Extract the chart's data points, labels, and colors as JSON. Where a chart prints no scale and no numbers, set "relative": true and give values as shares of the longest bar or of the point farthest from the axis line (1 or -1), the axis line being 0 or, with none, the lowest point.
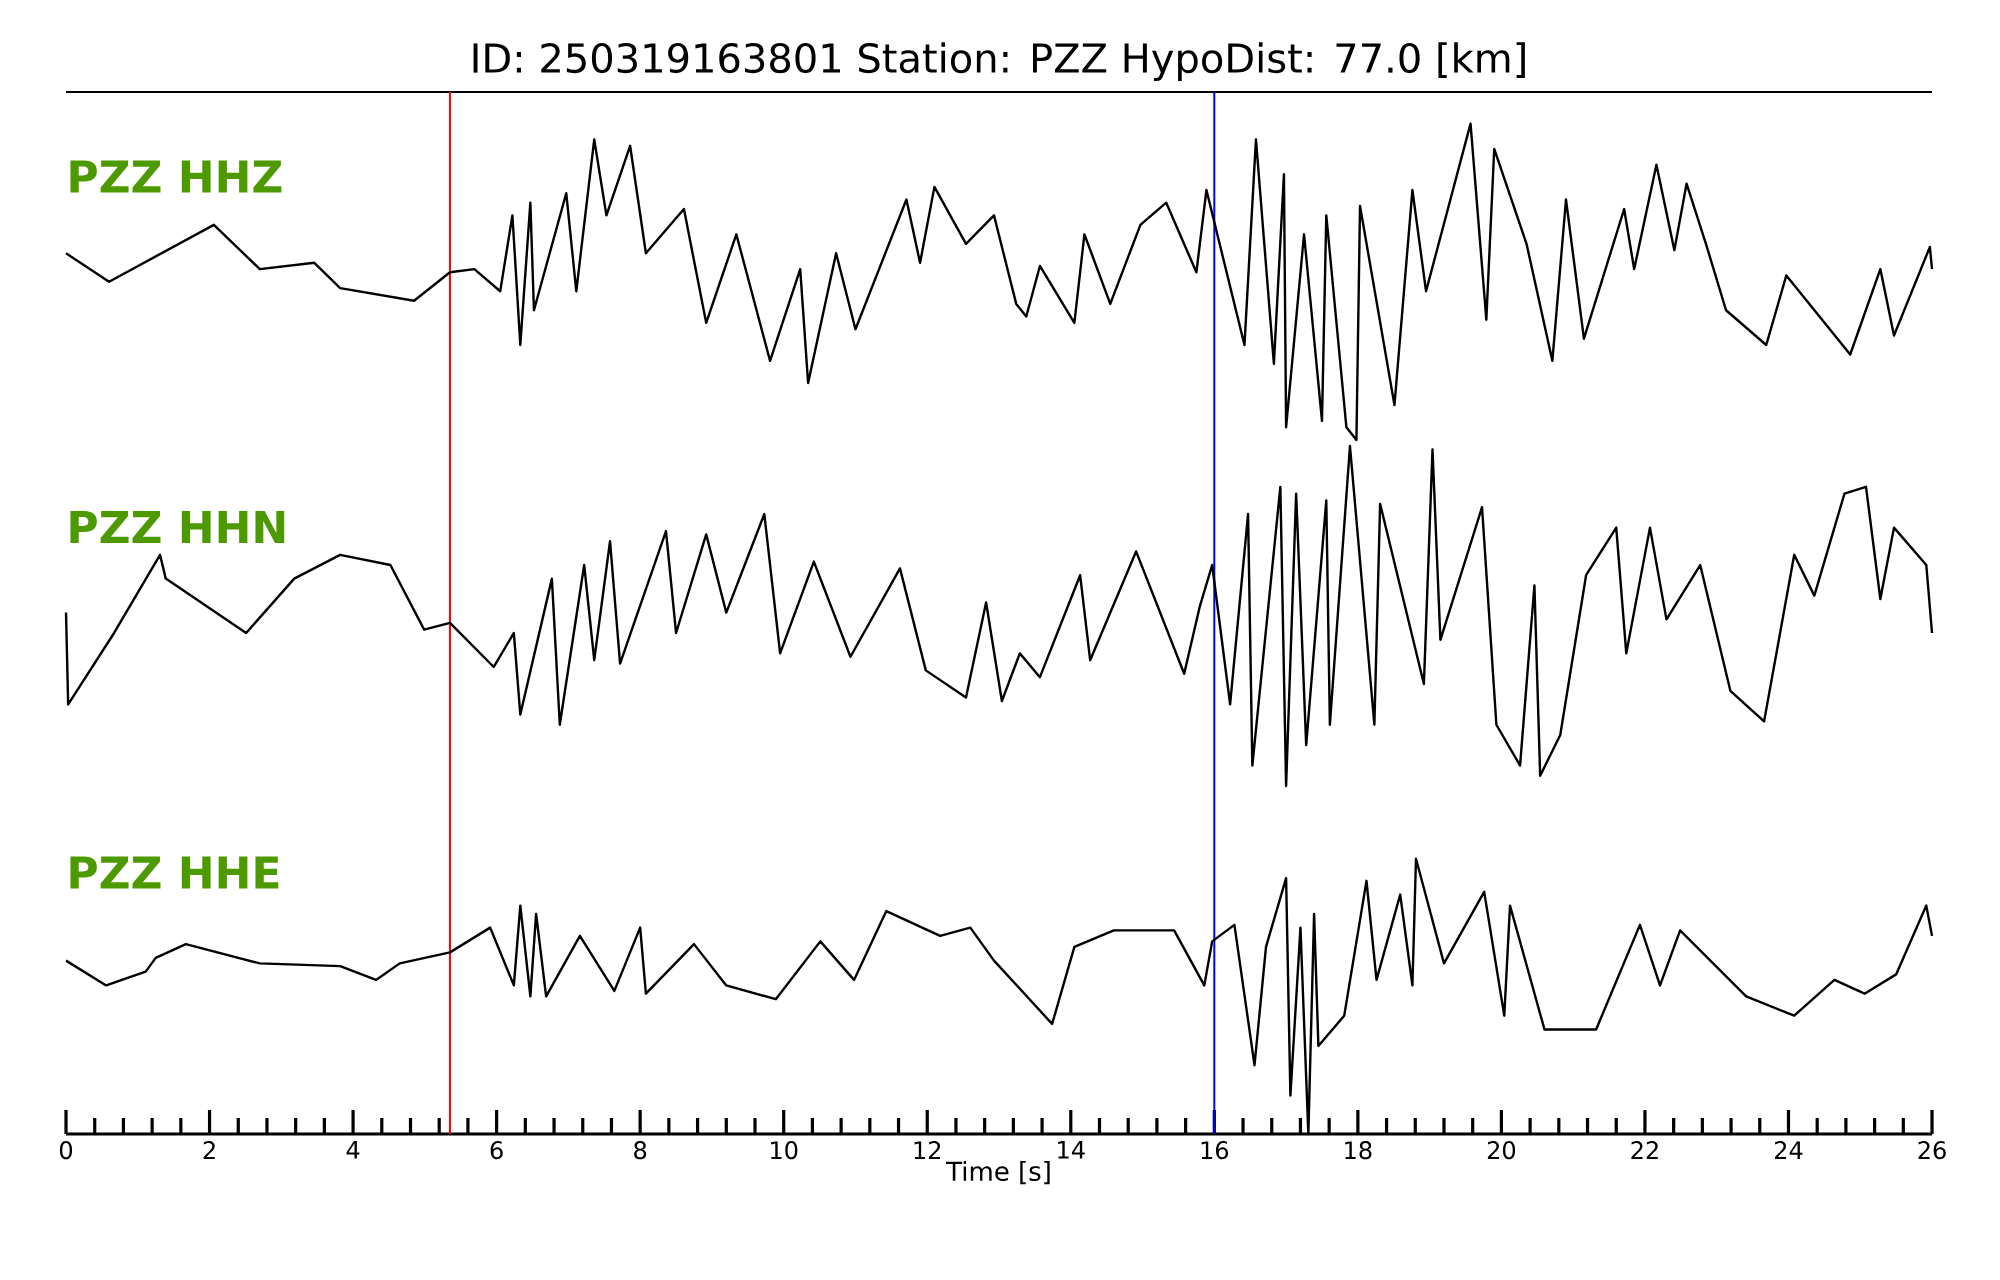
{
  "chart_data": [
    {
      "type": "line",
      "title": "ID: 250319163801   Station: PZZ   HypoDist:     77.0 [km]",
      "relative": true,
      "xlim": [
        0,
        26
      ],
      "tick_labels": false,
      "x": [
        0,
        0.6,
        2.06,
        2.7,
        3.46,
        3.82,
        4.85,
        5.35,
        5.69,
        6.05,
        6.22,
        6.33,
        6.47,
        6.52,
        6.97,
        7.11,
        7.36,
        7.53,
        7.86,
        8.08,
        8.61,
        8.92,
        9.34,
        9.81,
        10.23,
        10.34,
        10.73,
        11.0,
        11.71,
        11.9,
        12.1,
        12.54,
        12.93,
        13.24,
        13.38,
        13.57,
        14.05,
        14.19,
        14.55,
        14.97,
        15.33,
        15.75,
        15.89,
        16.42,
        16.58,
        16.83,
        16.97,
        17.0,
        17.25,
        17.5,
        17.56,
        17.84,
        17.98,
        18.03,
        18.51,
        18.76,
        18.95,
        19.57,
        19.79,
        19.9,
        20.35,
        20.71,
        20.9,
        21.15,
        21.71,
        21.85,
        22.16,
        22.41,
        22.58,
        22.85,
        23.13,
        23.69,
        23.97,
        24.86,
        25.28,
        25.47,
        25.97,
        26.0
      ],
      "series": [
        {
          "name": "PZZ HHZ",
          "color": "#000000",
          "values": [
            0.59,
            0.5,
            0.68,
            0.54,
            0.56,
            0.48,
            0.44,
            0.53,
            0.54,
            0.47,
            0.71,
            0.3,
            0.75,
            0.41,
            0.78,
            0.47,
            0.95,
            0.71,
            0.93,
            0.59,
            0.73,
            0.37,
            0.65,
            0.25,
            0.54,
            0.18,
            0.59,
            0.35,
            0.76,
            0.56,
            0.8,
            0.62,
            0.71,
            0.43,
            0.39,
            0.55,
            0.37,
            0.65,
            0.43,
            0.68,
            0.75,
            0.53,
            0.79,
            0.3,
            0.95,
            0.24,
            0.84,
            0.04,
            0.65,
            0.06,
            0.71,
            0.04,
            0.0,
            0.74,
            0.11,
            0.79,
            0.47,
            1.0,
            0.38,
            0.92,
            0.62,
            0.25,
            0.76,
            0.32,
            0.73,
            0.54,
            0.87,
            0.6,
            0.81,
            0.62,
            0.41,
            0.3,
            0.52,
            0.27,
            0.54,
            0.33,
            0.61,
            0.54
          ]
        }
      ],
      "ref_lines": [
        {
          "axis": "x",
          "value": 5.35,
          "color": "#ff0000"
        },
        {
          "axis": "x",
          "value": 16.0,
          "color": "#0000ff"
        }
      ]
    },
    {
      "type": "line",
      "relative": true,
      "xlim": [
        0,
        26
      ],
      "tick_labels": false,
      "x": [
        0,
        0.03,
        0.67,
        1.31,
        1.39,
        2.51,
        3.18,
        3.82,
        4.52,
        4.99,
        5.35,
        5.96,
        6.24,
        6.33,
        6.77,
        6.88,
        7.22,
        7.36,
        7.58,
        7.72,
        8.36,
        8.5,
        8.92,
        9.2,
        9.73,
        9.95,
        10.42,
        10.93,
        11.62,
        11.98,
        12.54,
        12.82,
        13.04,
        13.29,
        13.57,
        14.13,
        14.27,
        14.91,
        15.58,
        15.8,
        15.97,
        16.22,
        16.47,
        16.53,
        16.92,
        17.0,
        17.14,
        17.28,
        17.56,
        17.61,
        17.89,
        18.23,
        18.31,
        18.92,
        19.04,
        19.15,
        19.73,
        19.93,
        20.26,
        20.46,
        20.54,
        20.82,
        21.18,
        21.6,
        21.74,
        22.07,
        22.3,
        22.77,
        23.19,
        23.66,
        24.08,
        24.36,
        24.78,
        25.08,
        25.28,
        25.47,
        25.92,
        26.0
      ],
      "series": [
        {
          "name": "PZZ HHN",
          "color": "#000000",
          "values": [
            0.51,
            0.24,
            0.45,
            0.68,
            0.61,
            0.45,
            0.61,
            0.68,
            0.65,
            0.46,
            0.48,
            0.35,
            0.45,
            0.21,
            0.61,
            0.18,
            0.65,
            0.37,
            0.72,
            0.36,
            0.75,
            0.45,
            0.74,
            0.51,
            0.8,
            0.39,
            0.66,
            0.38,
            0.64,
            0.34,
            0.26,
            0.54,
            0.25,
            0.39,
            0.32,
            0.62,
            0.37,
            0.69,
            0.33,
            0.53,
            0.65,
            0.24,
            0.8,
            0.06,
            0.88,
            0.0,
            0.86,
            0.12,
            0.84,
            0.18,
            1.0,
            0.18,
            0.83,
            0.3,
            0.99,
            0.43,
            0.82,
            0.18,
            0.06,
            0.59,
            0.03,
            0.15,
            0.62,
            0.76,
            0.39,
            0.76,
            0.49,
            0.65,
            0.28,
            0.19,
            0.68,
            0.56,
            0.86,
            0.88,
            0.55,
            0.76,
            0.65,
            0.45
          ]
        }
      ],
      "ref_lines": [
        {
          "axis": "x",
          "value": 5.35,
          "color": "#ff0000"
        },
        {
          "axis": "x",
          "value": 16.0,
          "color": "#0000ff"
        }
      ]
    },
    {
      "type": "line",
      "relative": true,
      "xlim": [
        0,
        26
      ],
      "tick_labels": "x",
      "xlabel": "Time [s]",
      "xticks": [
        0,
        2,
        4,
        6,
        8,
        10,
        12,
        14,
        16,
        18,
        20,
        22,
        24,
        26
      ],
      "x": [
        0,
        0.56,
        1.11,
        1.25,
        1.67,
        2.7,
        3.82,
        4.32,
        4.65,
        5.35,
        5.91,
        6.24,
        6.33,
        6.47,
        6.55,
        6.69,
        7.16,
        7.64,
        8.0,
        8.08,
        8.75,
        9.2,
        9.89,
        10.51,
        10.98,
        11.43,
        12.18,
        12.6,
        12.93,
        13.74,
        14.05,
        14.6,
        15.44,
        15.86,
        15.97,
        16.28,
        16.56,
        16.72,
        17.0,
        17.06,
        17.2,
        17.31,
        17.39,
        17.45,
        17.81,
        18.12,
        18.26,
        18.59,
        18.76,
        18.81,
        19.2,
        19.76,
        20.04,
        20.12,
        20.6,
        21.32,
        21.93,
        22.21,
        22.49,
        23.41,
        24.08,
        24.64,
        25.06,
        25.5,
        25.92,
        26.0
      ],
      "series": [
        {
          "name": "PZZ HHE",
          "color": "#000000",
          "values": [
            0.63,
            0.54,
            0.59,
            0.64,
            0.69,
            0.62,
            0.61,
            0.56,
            0.62,
            0.66,
            0.75,
            0.54,
            0.83,
            0.5,
            0.8,
            0.5,
            0.72,
            0.52,
            0.75,
            0.51,
            0.69,
            0.54,
            0.49,
            0.7,
            0.56,
            0.81,
            0.72,
            0.75,
            0.63,
            0.4,
            0.68,
            0.74,
            0.74,
            0.54,
            0.7,
            0.76,
            0.25,
            0.68,
            0.93,
            0.14,
            0.75,
            0.0,
            0.8,
            0.32,
            0.43,
            0.92,
            0.56,
            0.87,
            0.54,
            1.0,
            0.62,
            0.88,
            0.43,
            0.83,
            0.38,
            0.38,
            0.76,
            0.54,
            0.74,
            0.5,
            0.43,
            0.56,
            0.51,
            0.58,
            0.83,
            0.72
          ]
        }
      ],
      "ref_lines": [
        {
          "axis": "x",
          "value": 5.35,
          "color": "#ff0000"
        },
        {
          "axis": "x",
          "value": 16.0,
          "color": "#0000ff"
        }
      ]
    }
  ]
}
